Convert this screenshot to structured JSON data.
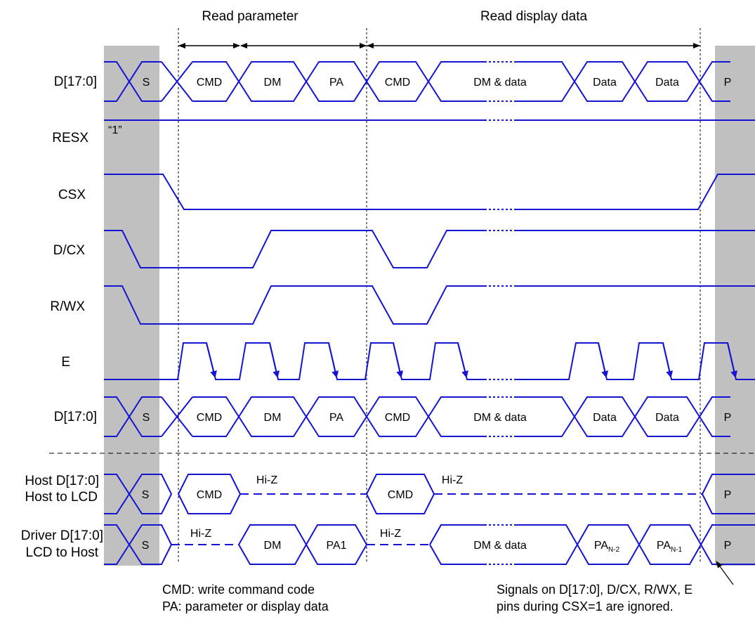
{
  "colors": {
    "wave": "#1414d2",
    "shade": "#c0c0c0",
    "ink": "#000000"
  },
  "headers": {
    "read_parameter": "Read parameter",
    "read_display_data": "Read display data"
  },
  "signals": {
    "d_top": "D[17:0]",
    "resx": "RESX",
    "resx_value": "“1”",
    "csx": "CSX",
    "dcx": "D/CX",
    "rwx": "R/WX",
    "e": "E",
    "d_bottom": "D[17:0]",
    "host_line1": "Host D[17:0]",
    "host_line2": "Host to LCD",
    "driver_line1": "Driver D[17:0]",
    "driver_line2": "LCD to Host"
  },
  "bus_cells": {
    "start": "S",
    "cmd": "CMD",
    "dm": "DM",
    "pa": "PA",
    "dm_data": "DM & data",
    "data": "Data",
    "stop": "P",
    "pa1": "PA1",
    "pa_n2_base": "PA",
    "pa_n2_sub": "N-2",
    "pa_n1_base": "PA",
    "pa_n1_sub": "N-1"
  },
  "hiz": "Hi-Z",
  "notes": {
    "cmd_note": "CMD: write command code",
    "pa_note": "PA: parameter or display data",
    "ignored_line1": "Signals on D[17:0], D/CX, R/WX, E",
    "ignored_line2": "pins during CSX=1 are ignored."
  }
}
